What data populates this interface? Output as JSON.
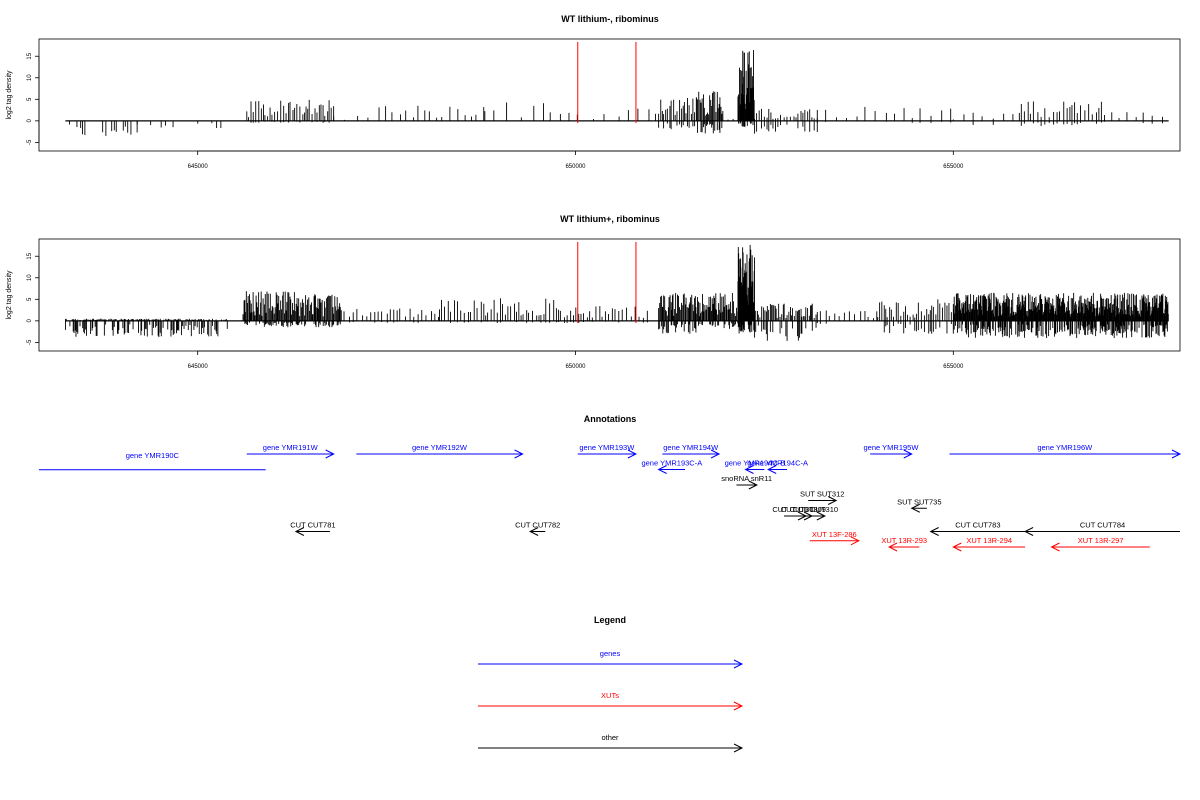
{
  "colors": {
    "gene": "#0000ff",
    "xut": "#ff0000",
    "other": "#000000",
    "marker": "#ff0000",
    "bar": "#000000"
  },
  "chart_data": [
    {
      "type": "bar",
      "title": "WT lithium-, ribominus",
      "ylabel": "log2 tag density",
      "xlim": [
        642900,
        658000
      ],
      "ylim": [
        -7,
        19
      ],
      "yticks": [
        -5,
        0,
        5,
        10,
        15
      ],
      "xticks": [
        645000,
        650000,
        655000
      ],
      "markers": [
        650030,
        650800
      ],
      "regions": [
        {
          "from": 643250,
          "to": 644200,
          "pos": 0.1,
          "neg": 3.5,
          "step": 40
        },
        {
          "from": 644200,
          "to": 645400,
          "pos": 0.0,
          "neg": 2.0,
          "step": 90
        },
        {
          "from": 645650,
          "to": 646800,
          "pos": 5.0,
          "neg": 0.5,
          "step": 30
        },
        {
          "from": 646800,
          "to": 647400,
          "pos": 1.5,
          "neg": 0.0,
          "step": 220
        },
        {
          "from": 647400,
          "to": 648800,
          "pos": 4.0,
          "neg": 0.0,
          "step": 90
        },
        {
          "from": 648800,
          "to": 649800,
          "pos": 4.5,
          "neg": 0.0,
          "step": 140
        },
        {
          "from": 649800,
          "to": 650700,
          "pos": 2.0,
          "neg": 0.0,
          "step": 160
        },
        {
          "from": 650700,
          "to": 651100,
          "pos": 3.0,
          "neg": 0.0,
          "step": 120
        },
        {
          "from": 651100,
          "to": 651600,
          "pos": 5.5,
          "neg": 2.5,
          "step": 25
        },
        {
          "from": 651600,
          "to": 651950,
          "pos": 7.0,
          "neg": 3.0,
          "step": 15
        },
        {
          "from": 651950,
          "to": 652150,
          "pos": 0.5,
          "neg": 0.0,
          "step": 80
        },
        {
          "from": 652150,
          "to": 652370,
          "pos": 17.0,
          "neg": 1.5,
          "step": 6
        },
        {
          "from": 652370,
          "to": 653200,
          "pos": 3.0,
          "neg": 3.0,
          "step": 35
        },
        {
          "from": 653200,
          "to": 655000,
          "pos": 3.5,
          "neg": 0.5,
          "step": 110
        },
        {
          "from": 655000,
          "to": 655900,
          "pos": 2.0,
          "neg": 2.5,
          "step": 140
        },
        {
          "from": 655900,
          "to": 657000,
          "pos": 4.5,
          "neg": 1.5,
          "step": 45
        },
        {
          "from": 657000,
          "to": 657850,
          "pos": 2.5,
          "neg": 1.0,
          "step": 110
        }
      ]
    },
    {
      "type": "bar",
      "title": "WT lithium+, ribominus",
      "ylabel": "log2 tag density",
      "xlim": [
        642900,
        658000
      ],
      "ylim": [
        -7,
        19
      ],
      "yticks": [
        -5,
        0,
        5,
        10,
        15
      ],
      "xticks": [
        645000,
        650000,
        655000
      ],
      "markers": [
        650030,
        650800
      ],
      "regions": [
        {
          "from": 643250,
          "to": 645400,
          "pos": 0.5,
          "neg": 3.8,
          "step": 14
        },
        {
          "from": 645600,
          "to": 646900,
          "pos": 7.0,
          "neg": 1.5,
          "step": 12
        },
        {
          "from": 646900,
          "to": 648200,
          "pos": 3.0,
          "neg": 0.5,
          "step": 55
        },
        {
          "from": 648200,
          "to": 649800,
          "pos": 5.5,
          "neg": 0.5,
          "step": 40
        },
        {
          "from": 649800,
          "to": 651000,
          "pos": 3.5,
          "neg": 0.5,
          "step": 45
        },
        {
          "from": 651100,
          "to": 651600,
          "pos": 6.5,
          "neg": 3.0,
          "step": 12
        },
        {
          "from": 651600,
          "to": 652150,
          "pos": 6.5,
          "neg": 2.0,
          "step": 12
        },
        {
          "from": 652150,
          "to": 652370,
          "pos": 18.0,
          "neg": 3.0,
          "step": 5
        },
        {
          "from": 652370,
          "to": 653200,
          "pos": 4.0,
          "neg": 5.0,
          "step": 18
        },
        {
          "from": 653200,
          "to": 654000,
          "pos": 2.5,
          "neg": 1.0,
          "step": 60
        },
        {
          "from": 654000,
          "to": 655000,
          "pos": 5.0,
          "neg": 3.0,
          "step": 30
        },
        {
          "from": 655000,
          "to": 657850,
          "pos": 6.5,
          "neg": 4.0,
          "step": 7
        }
      ]
    },
    {
      "type": "annotation-track",
      "title": "Annotations",
      "xlim": [
        642900,
        658000
      ],
      "features": [
        {
          "label": "gene YMR190C",
          "category": "gene",
          "strand": "-",
          "start": 642900,
          "end": 645900,
          "row": 0.5
        },
        {
          "label": "gene YMR191W",
          "category": "gene",
          "strand": "+",
          "start": 645650,
          "end": 646800,
          "row": 0
        },
        {
          "label": "gene YMR192W",
          "category": "gene",
          "strand": "+",
          "start": 647100,
          "end": 649300,
          "row": 0
        },
        {
          "label": "gene YMR193W",
          "category": "gene",
          "strand": "+",
          "start": 650030,
          "end": 650800,
          "row": 0
        },
        {
          "label": "gene YMR193C-A",
          "category": "gene",
          "strand": "-",
          "start": 651100,
          "end": 651450,
          "row": 1
        },
        {
          "label": "gene YMR194W",
          "category": "gene",
          "strand": "+",
          "start": 651150,
          "end": 651900,
          "row": 0
        },
        {
          "label": "gene YMR194C-B",
          "category": "gene",
          "strand": "-",
          "start": 652250,
          "end": 652500,
          "row": 1
        },
        {
          "label": "gene YMR194C-A",
          "category": "gene",
          "strand": "-",
          "start": 652550,
          "end": 652800,
          "row": 1
        },
        {
          "label": "gene YMR195W",
          "category": "gene",
          "strand": "+",
          "start": 653900,
          "end": 654450,
          "row": 0
        },
        {
          "label": "gene YMR196W",
          "category": "gene",
          "strand": "+",
          "start": 654950,
          "end": 658000,
          "row": 0
        },
        {
          "label": "snoRNA snR11",
          "category": "other",
          "strand": "+",
          "start": 652130,
          "end": 652400,
          "row": 2
        },
        {
          "label": "SUT SUT312",
          "category": "other",
          "strand": "+",
          "start": 653080,
          "end": 653450,
          "row": 3
        },
        {
          "label": "SUT SUT735",
          "category": "other",
          "strand": "-",
          "start": 654450,
          "end": 654650,
          "row": 3.5
        },
        {
          "label": "CUT CUT781",
          "category": "other",
          "strand": "-",
          "start": 646300,
          "end": 646750,
          "row": 5
        },
        {
          "label": "CUT CUT782",
          "category": "other",
          "strand": "-",
          "start": 649400,
          "end": 649600,
          "row": 5
        },
        {
          "label": "CUT CUT308",
          "category": "other",
          "strand": "+",
          "start": 652760,
          "end": 653050,
          "row": 4
        },
        {
          "label": "CUT CUT309",
          "category": "other",
          "strand": "+",
          "start": 652900,
          "end": 653130,
          "row": 4
        },
        {
          "label": "CUT CUT310",
          "category": "other",
          "strand": "+",
          "start": 653050,
          "end": 653300,
          "row": 4
        },
        {
          "label": "CUT CUT783",
          "category": "other",
          "strand": "-",
          "start": 654700,
          "end": 655950,
          "row": 5
        },
        {
          "label": "CUT CUT784",
          "category": "other",
          "strand": "-",
          "start": 655950,
          "end": 658000,
          "row": 5
        },
        {
          "label": "XUT 13F-286",
          "category": "xut",
          "strand": "+",
          "start": 653100,
          "end": 653750,
          "row": 5.6
        },
        {
          "label": "XUT 13R-293",
          "category": "xut",
          "strand": "-",
          "start": 654150,
          "end": 654550,
          "row": 6
        },
        {
          "label": "XUT 13R-294",
          "category": "xut",
          "strand": "-",
          "start": 655000,
          "end": 655950,
          "row": 6
        },
        {
          "label": "XUT 13R-297",
          "category": "xut",
          "strand": "-",
          "start": 656300,
          "end": 657600,
          "row": 6
        }
      ]
    }
  ],
  "legend": {
    "title": "Legend",
    "items": [
      {
        "label": "genes",
        "category": "gene"
      },
      {
        "label": "XUTs",
        "category": "xut"
      },
      {
        "label": "other",
        "category": "other"
      }
    ]
  }
}
